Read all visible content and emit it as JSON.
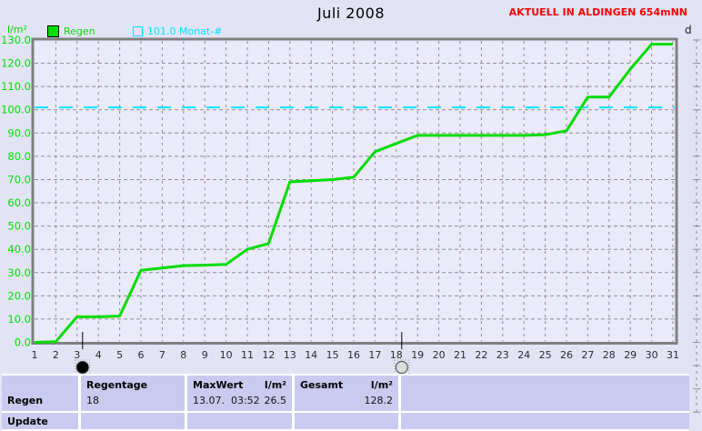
{
  "header": {
    "title": "Juli 2008",
    "status": "AKTUELL IN ALDINGEN 654mNN",
    "unit_label": "l/m²",
    "right_axis_label": "d"
  },
  "legend": [
    {
      "label": "Regen",
      "color": "#00dc00",
      "style": "filled"
    },
    {
      "label": "101.0 Monat-#",
      "color": "#00e5ff",
      "style": "outline"
    }
  ],
  "chart_data": {
    "type": "line",
    "title": "Juli 2008",
    "ylabel": "l/m²",
    "ylim": [
      0,
      130
    ],
    "ytick_step": 10,
    "grid": true,
    "x": [
      1,
      2,
      3,
      4,
      5,
      6,
      7,
      8,
      9,
      10,
      11,
      12,
      13,
      14,
      15,
      16,
      17,
      18,
      19,
      20,
      21,
      22,
      23,
      24,
      25,
      26,
      27,
      28,
      29,
      30,
      31
    ],
    "series": [
      {
        "name": "Regen",
        "color": "#00dc00",
        "values": [
          0,
          0.3,
          11,
          11,
          11.3,
          31,
          32,
          33,
          33.2,
          33.5,
          40,
          42.5,
          69,
          69.5,
          70,
          71,
          82,
          85.5,
          89,
          89,
          89,
          89,
          89,
          89,
          89.3,
          91,
          105.5,
          105.5,
          117.5,
          128.2,
          128.2
        ]
      }
    ],
    "reference_line": {
      "label": "101.0 Monat-#",
      "value": 101.0,
      "color": "#00e5ff"
    },
    "moon_markers": [
      {
        "day": 3,
        "phase": "new"
      },
      {
        "day": 18,
        "phase": "full"
      }
    ]
  },
  "table": {
    "row_label": "Regen",
    "row2_label": "Update",
    "col_regentage": {
      "header": "Regentage",
      "value": "18"
    },
    "col_maxwert": {
      "header": "MaxWert",
      "unit": "l/m²",
      "value": "13.07.  03:52",
      "unit_value": "26.5"
    },
    "col_gesamt": {
      "header": "Gesamt",
      "unit": "l/m²",
      "value": "128.2"
    }
  },
  "colors": {
    "background": "#e3e3f6",
    "plot_background": "#eaeafa",
    "frame": "#808080",
    "grid": "#8f8f8f",
    "series_green": "#00dc00",
    "reference_cyan": "#00e5ff",
    "status_red": "#ff0000",
    "table_cell": "#cacaf0"
  }
}
